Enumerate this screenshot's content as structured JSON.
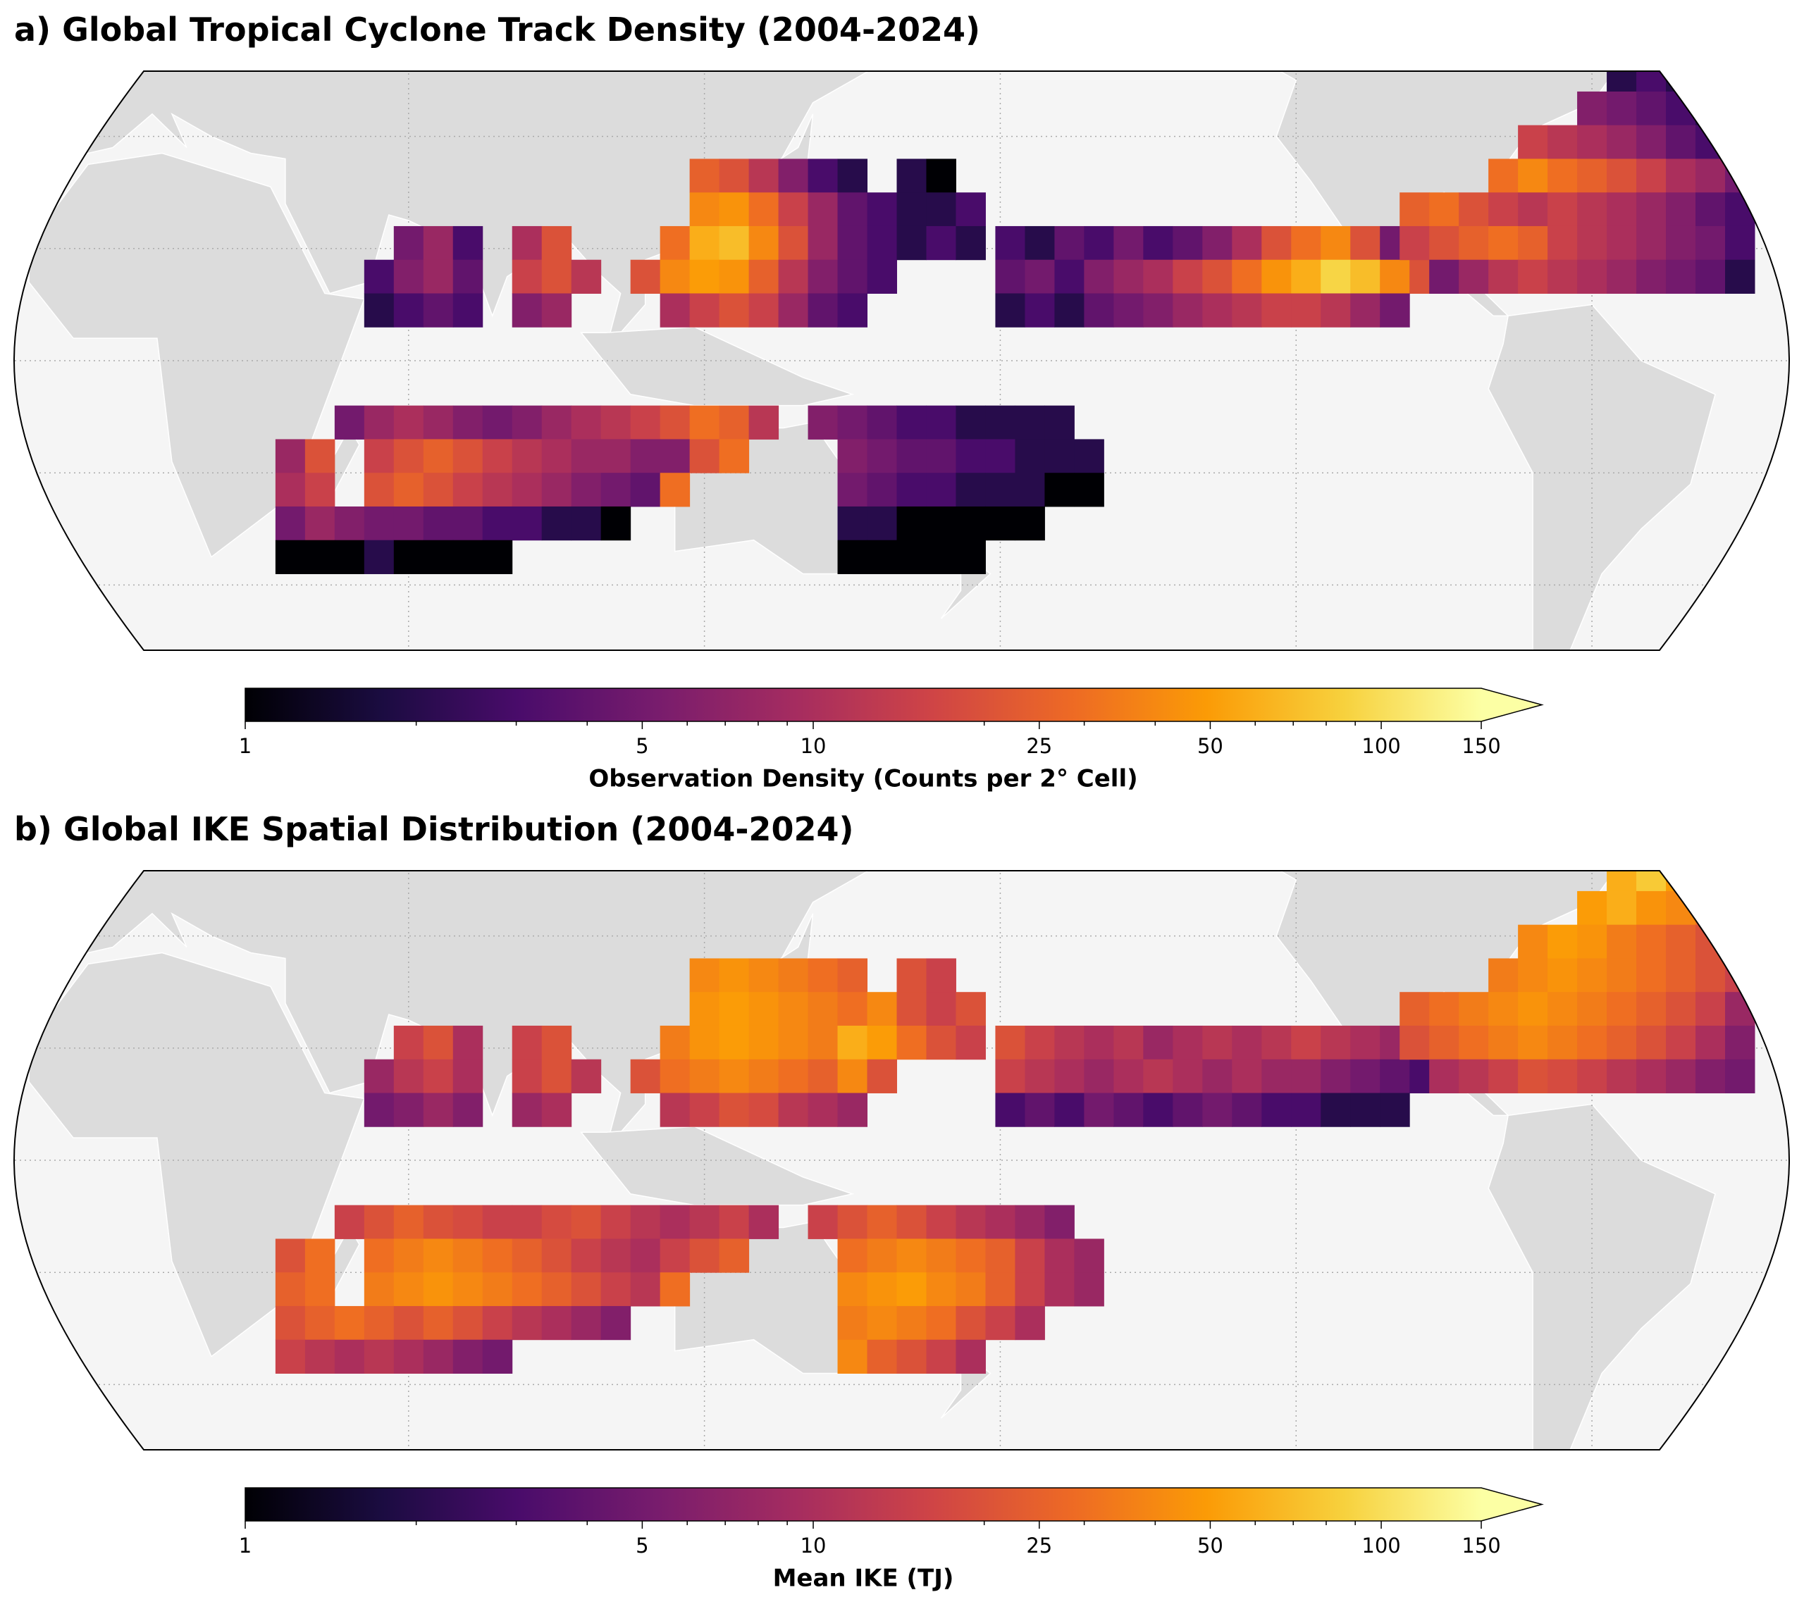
{
  "chart_data": [
    {
      "type": "heatmap",
      "title": "a) Global Tropical Cyclone Track Density (2004-2024)",
      "cell_size": 6,
      "colorbar": {
        "label": "Observation Density (Counts per 2° Cell)",
        "lim": [
          1,
          150
        ],
        "ticks": [
          1,
          5,
          10,
          25,
          50,
          100,
          150
        ],
        "minor_ticks": [
          2,
          3,
          4,
          6,
          7,
          8,
          9,
          20,
          30,
          40,
          60,
          70,
          80,
          90
        ],
        "scale": "log",
        "cmap": "inferno",
        "extend": "max"
      },
      "rows": [
        {
          "lat": 33,
          "lon0": 120,
          "values": [
            25,
            20,
            12,
            6,
            3,
            2,
            null,
            2,
            1
          ]
        },
        {
          "lat": 27,
          "lon0": 120,
          "values": [
            40,
            45,
            30,
            15,
            8,
            4,
            3,
            2,
            2,
            3
          ]
        },
        {
          "lat": 21,
          "lon0": 114,
          "values": [
            30,
            60,
            70,
            40,
            20,
            8,
            4,
            3,
            2,
            3,
            2
          ]
        },
        {
          "lat": 15,
          "lon0": 108,
          "values": [
            20,
            40,
            50,
            45,
            25,
            12,
            6,
            4,
            3
          ]
        },
        {
          "lat": 9,
          "lon0": 114,
          "values": [
            10,
            15,
            20,
            15,
            8,
            4,
            3
          ]
        },
        {
          "lat": 21,
          "lon0": 60,
          "values": [
            5,
            8,
            3,
            null,
            10,
            20
          ]
        },
        {
          "lat": 15,
          "lon0": 54,
          "values": [
            3,
            6,
            8,
            4,
            null,
            15,
            20,
            12
          ]
        },
        {
          "lat": 9,
          "lon0": 54,
          "values": [
            2,
            3,
            4,
            3,
            null,
            6,
            8
          ]
        },
        {
          "lat": 21,
          "lon0": -178,
          "values": [
            3,
            2,
            4,
            3,
            5,
            3,
            4,
            6,
            10,
            20,
            30,
            40,
            20,
            5
          ]
        },
        {
          "lat": 15,
          "lon0": -178,
          "values": [
            4,
            5,
            3,
            6,
            8,
            10,
            15,
            20,
            30,
            45,
            60,
            90,
            70,
            40,
            20,
            8
          ]
        },
        {
          "lat": 9,
          "lon0": -178,
          "values": [
            2,
            3,
            2,
            4,
            5,
            6,
            8,
            10,
            12,
            15,
            15,
            12,
            8,
            5
          ]
        },
        {
          "lat": 51,
          "lon0": -54,
          "values": [
            2,
            3,
            2
          ]
        },
        {
          "lat": 45,
          "lon0": -60,
          "values": [
            6,
            5,
            4,
            3,
            2
          ]
        },
        {
          "lat": 39,
          "lon0": -72,
          "values": [
            15,
            12,
            10,
            8,
            6,
            4,
            3,
            2
          ]
        },
        {
          "lat": 33,
          "lon0": -78,
          "values": [
            30,
            40,
            30,
            25,
            20,
            15,
            10,
            8,
            5,
            3
          ]
        },
        {
          "lat": 27,
          "lon0": -96,
          "values": [
            25,
            30,
            20,
            15,
            12,
            15,
            12,
            10,
            8,
            6,
            4,
            3
          ]
        },
        {
          "lat": 21,
          "lon0": -96,
          "values": [
            15,
            20,
            25,
            30,
            25,
            15,
            12,
            10,
            8,
            6,
            5,
            3
          ]
        },
        {
          "lat": 15,
          "lon0": -90,
          "values": [
            5,
            8,
            12,
            15,
            12,
            10,
            8,
            6,
            5,
            4,
            2
          ]
        },
        {
          "lat": -11,
          "lon0": 42,
          "values": [
            null,
            5,
            8,
            10,
            8,
            6,
            5,
            6,
            8,
            10,
            12,
            15,
            20,
            30,
            25,
            12,
            null,
            6,
            5,
            4,
            3,
            3,
            2,
            2,
            2,
            2
          ]
        },
        {
          "lat": -17,
          "lon0": 36,
          "values": [
            8,
            20,
            null,
            15,
            20,
            25,
            20,
            15,
            12,
            10,
            8,
            8,
            6,
            6,
            20,
            30,
            null,
            null,
            null,
            6,
            5,
            4,
            4,
            3,
            3,
            2,
            2,
            2
          ]
        },
        {
          "lat": -23,
          "lon0": 36,
          "values": [
            10,
            15,
            null,
            20,
            25,
            20,
            15,
            12,
            10,
            8,
            6,
            5,
            4,
            30,
            null,
            null,
            null,
            null,
            null,
            5,
            4,
            3,
            3,
            2,
            2,
            2,
            1,
            1
          ]
        },
        {
          "lat": -29,
          "lon0": 36,
          "values": [
            5,
            8,
            6,
            5,
            5,
            4,
            4,
            3,
            3,
            2,
            2,
            1,
            null,
            null,
            null,
            null,
            null,
            null,
            null,
            2,
            2,
            1,
            1,
            1,
            1,
            1
          ]
        },
        {
          "lat": -35,
          "lon0": 36,
          "values": [
            1,
            1,
            1,
            2,
            1,
            1,
            1,
            1,
            null,
            null,
            null,
            null,
            null,
            null,
            null,
            null,
            null,
            null,
            null,
            1,
            1,
            1,
            1,
            1
          ]
        }
      ]
    },
    {
      "type": "heatmap",
      "title": "b) Global IKE Spatial Distribution (2004-2024)",
      "cell_size": 6,
      "colorbar": {
        "label": "Mean IKE (TJ)",
        "lim": [
          1,
          150
        ],
        "ticks": [
          1,
          5,
          10,
          25,
          50,
          100,
          150
        ],
        "minor_ticks": [
          2,
          3,
          4,
          6,
          7,
          8,
          9,
          20,
          30,
          40,
          60,
          70,
          80,
          90
        ],
        "scale": "log",
        "cmap": "inferno",
        "extend": "max"
      },
      "rows": [
        {
          "lat": 33,
          "lon0": 120,
          "values": [
            40,
            45,
            40,
            35,
            30,
            25,
            null,
            20,
            15
          ]
        },
        {
          "lat": 27,
          "lon0": 120,
          "values": [
            45,
            50,
            45,
            40,
            35,
            30,
            40,
            20,
            15,
            20
          ]
        },
        {
          "lat": 21,
          "lon0": 114,
          "values": [
            35,
            45,
            50,
            45,
            40,
            35,
            60,
            50,
            30,
            20,
            15
          ]
        },
        {
          "lat": 15,
          "lon0": 108,
          "values": [
            20,
            30,
            35,
            40,
            35,
            30,
            25,
            40,
            20
          ]
        },
        {
          "lat": 9,
          "lon0": 114,
          "values": [
            12,
            15,
            20,
            18,
            12,
            10,
            8
          ]
        },
        {
          "lat": 21,
          "lon0": 60,
          "values": [
            15,
            20,
            10,
            null,
            15,
            20
          ]
        },
        {
          "lat": 15,
          "lon0": 54,
          "values": [
            8,
            12,
            15,
            10,
            null,
            15,
            20,
            12
          ]
        },
        {
          "lat": 9,
          "lon0": 54,
          "values": [
            5,
            6,
            8,
            6,
            null,
            8,
            10
          ]
        },
        {
          "lat": 21,
          "lon0": -178,
          "values": [
            20,
            15,
            12,
            10,
            12,
            8,
            10,
            12,
            10,
            12,
            15,
            12,
            10,
            8
          ]
        },
        {
          "lat": 15,
          "lon0": -178,
          "values": [
            15,
            12,
            10,
            8,
            10,
            12,
            10,
            8,
            10,
            8,
            8,
            6,
            5,
            4,
            3,
            3
          ]
        },
        {
          "lat": 9,
          "lon0": -178,
          "values": [
            3,
            4,
            3,
            5,
            4,
            3,
            4,
            5,
            4,
            3,
            3,
            2,
            2,
            2
          ]
        },
        {
          "lat": 51,
          "lon0": -54,
          "values": [
            60,
            80,
            50
          ]
        },
        {
          "lat": 45,
          "lon0": -60,
          "values": [
            50,
            60,
            45,
            40,
            30
          ]
        },
        {
          "lat": 39,
          "lon0": -72,
          "values": [
            40,
            50,
            45,
            35,
            30,
            25,
            20,
            10
          ]
        },
        {
          "lat": 33,
          "lon0": -78,
          "values": [
            35,
            40,
            45,
            40,
            35,
            30,
            25,
            20,
            15,
            10
          ]
        },
        {
          "lat": 27,
          "lon0": -96,
          "values": [
            25,
            30,
            35,
            40,
            45,
            40,
            35,
            30,
            25,
            20,
            15,
            8
          ]
        },
        {
          "lat": 21,
          "lon0": -96,
          "values": [
            20,
            25,
            30,
            35,
            40,
            35,
            30,
            25,
            20,
            15,
            10,
            6
          ]
        },
        {
          "lat": 15,
          "lon0": -90,
          "values": [
            10,
            12,
            15,
            20,
            18,
            15,
            12,
            10,
            8,
            6,
            5
          ]
        },
        {
          "lat": -11,
          "lon0": 42,
          "values": [
            null,
            15,
            20,
            25,
            20,
            18,
            15,
            15,
            18,
            20,
            15,
            12,
            10,
            12,
            15,
            10,
            null,
            15,
            20,
            25,
            20,
            15,
            12,
            10,
            8,
            6
          ]
        },
        {
          "lat": -17,
          "lon0": 36,
          "values": [
            20,
            30,
            null,
            30,
            35,
            40,
            35,
            30,
            25,
            20,
            15,
            12,
            10,
            15,
            20,
            25,
            null,
            null,
            null,
            30,
            35,
            40,
            35,
            30,
            25,
            15,
            10,
            8
          ]
        },
        {
          "lat": -23,
          "lon0": 36,
          "values": [
            25,
            30,
            null,
            35,
            40,
            45,
            40,
            35,
            30,
            25,
            20,
            15,
            12,
            30,
            null,
            null,
            null,
            null,
            null,
            40,
            45,
            50,
            40,
            35,
            25,
            15,
            10,
            8
          ]
        },
        {
          "lat": -29,
          "lon0": 36,
          "values": [
            20,
            25,
            30,
            25,
            20,
            25,
            20,
            15,
            12,
            10,
            8,
            6,
            null,
            null,
            null,
            null,
            null,
            null,
            null,
            35,
            40,
            35,
            30,
            20,
            15,
            10
          ]
        },
        {
          "lat": -35,
          "lon0": 36,
          "values": [
            15,
            12,
            10,
            12,
            10,
            8,
            6,
            5,
            null,
            null,
            null,
            null,
            null,
            null,
            null,
            null,
            null,
            null,
            null,
            40,
            25,
            20,
            15,
            10
          ]
        }
      ]
    }
  ]
}
